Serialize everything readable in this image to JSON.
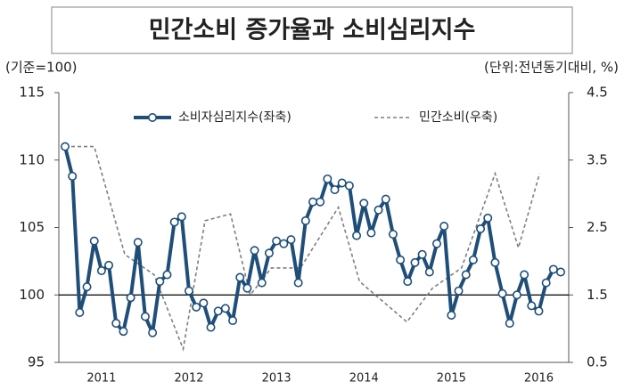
{
  "chart_data": {
    "type": "line",
    "title": "민간소비 증가율과 소비심리지수",
    "y_axis_label": "(기준=100)",
    "y2_axis_label": "(단위:전년동기대비, %)",
    "categories": [
      null,
      null,
      null,
      null,
      null,
      "2011",
      null,
      null,
      null,
      null,
      null,
      null,
      null,
      null,
      null,
      null,
      null,
      "2012",
      null,
      null,
      null,
      null,
      null,
      null,
      null,
      null,
      null,
      null,
      null,
      "2013",
      null,
      null,
      null,
      null,
      null,
      null,
      null,
      null,
      null,
      null,
      null,
      "2014",
      null,
      null,
      null,
      null,
      null,
      null,
      null,
      null,
      null,
      null,
      null,
      "2015",
      null,
      null,
      null,
      null,
      null,
      null,
      null,
      null,
      null,
      null,
      null,
      "2016",
      null,
      null,
      null
    ],
    "ylim": [
      95,
      115
    ],
    "yticks": [
      95,
      100,
      105,
      110,
      115
    ],
    "y2lim": [
      0.5,
      4.5
    ],
    "y2ticks": [
      0.5,
      1.5,
      2.5,
      3.5,
      4.5
    ],
    "reference_line": 100,
    "legend": "top",
    "series": [
      {
        "name": "소비자심리지수(좌축)",
        "color": "#1f4e79",
        "values": [
          111.0,
          108.8,
          98.7,
          100.6,
          104.0,
          101.8,
          102.2,
          97.9,
          97.3,
          99.8,
          103.9,
          98.4,
          97.2,
          101.0,
          101.5,
          105.4,
          105.8,
          100.3,
          99.1,
          99.4,
          97.6,
          98.8,
          99.0,
          98.1,
          101.3,
          100.5,
          103.3,
          100.9,
          103.1,
          104.0,
          103.8,
          104.1,
          100.9,
          105.5,
          106.9,
          106.9,
          108.6,
          107.8,
          108.3,
          108.1,
          104.4,
          106.8,
          104.6,
          106.3,
          107.1,
          104.5,
          102.6,
          101.0,
          102.4,
          103.0,
          101.7,
          103.8,
          105.1,
          98.5,
          100.3,
          101.5,
          102.6,
          104.9,
          105.7,
          102.4,
          100.1,
          97.9,
          100.0,
          101.5,
          99.2,
          98.8,
          100.9,
          101.9,
          101.7
        ]
      },
      {
        "name": "민간소비(우축)",
        "color": "#7f7f7f",
        "axis": "y2",
        "x": [
          0,
          4,
          8.2,
          12.2,
          16.2,
          19.2,
          22.7,
          25.4,
          28.3,
          32.3,
          37.5,
          40.4,
          46.9,
          50.4,
          54.4,
          59,
          62.2,
          65.1
        ],
        "values": [
          3.7,
          3.7,
          2.1,
          1.8,
          0.7,
          2.6,
          2.7,
          1.5,
          1.9,
          1.9,
          2.8,
          1.7,
          1.1,
          1.6,
          1.9,
          3.3,
          2.2,
          3.3
        ]
      }
    ]
  }
}
